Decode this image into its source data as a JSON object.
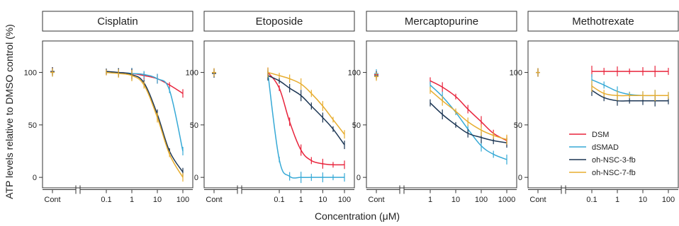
{
  "chart_data": {
    "type": "line",
    "ylabel": "ATP levels relative to DMSO control (%)",
    "xlabel": "Concentration (μM)",
    "x_scale": "log",
    "control_label": "Cont",
    "y_ticks": [
      0,
      50,
      100
    ],
    "ylim": [
      -10,
      130
    ],
    "colors": {
      "DSM": "#e8243c",
      "dSMAD": "#36a9d6",
      "oh-NSC-3-fb": "#1b3553",
      "oh-NSC-7-fb": "#e7ad2f"
    },
    "legend": {
      "placement": "lower-right of Methotrexate panel",
      "entries": [
        "DSM",
        "dSMAD",
        "oh-NSC-3-fb",
        "oh-NSC-7-fb"
      ]
    },
    "panels": [
      {
        "title": "Cisplatin",
        "x_ticks": [
          "0.1",
          "1",
          "10",
          "100"
        ],
        "x_range": [
          0.1,
          100
        ],
        "control": {
          "DSM": 101,
          "dSMAD": 100,
          "oh-NSC-3-fb": 101,
          "oh-NSC-7-fb": 100
        },
        "series": [
          {
            "name": "DSM",
            "x": [
              0.1,
              0.3,
              1,
              3,
              10,
              30,
              100
            ],
            "y": [
              100,
              100,
              99,
              97,
              94,
              88,
              80
            ]
          },
          {
            "name": "dSMAD",
            "x": [
              0.1,
              0.3,
              1,
              3,
              10,
              30,
              100
            ],
            "y": [
              100,
              100,
              99,
              98,
              94,
              83,
              25
            ]
          },
          {
            "name": "oh-NSC-3-fb",
            "x": [
              0.1,
              0.3,
              1,
              3,
              10,
              30,
              100
            ],
            "y": [
              101,
              100,
              98,
              90,
              60,
              25,
              5
            ]
          },
          {
            "name": "oh-NSC-7-fb",
            "x": [
              0.1,
              0.3,
              1,
              3,
              10,
              30,
              100
            ],
            "y": [
              100,
              99,
              97,
              88,
              57,
              22,
              0
            ]
          }
        ]
      },
      {
        "title": "Etoposide",
        "x_ticks": [
          "0.1",
          "1",
          "10",
          "100"
        ],
        "x_range": [
          0.03,
          100
        ],
        "control": {
          "DSM": 100,
          "dSMAD": 100,
          "oh-NSC-3-fb": 99,
          "oh-NSC-7-fb": 100
        },
        "series": [
          {
            "name": "DSM",
            "x": [
              0.03,
              0.1,
              0.3,
              1,
              3,
              10,
              30,
              100
            ],
            "y": [
              100,
              85,
              53,
              26,
              16,
              13,
              12,
              12
            ]
          },
          {
            "name": "dSMAD",
            "x": [
              0.03,
              0.1,
              0.3,
              1,
              3,
              10,
              30,
              100
            ],
            "y": [
              99,
              17,
              1,
              0,
              0,
              0,
              0,
              0
            ]
          },
          {
            "name": "oh-NSC-3-fb",
            "x": [
              0.03,
              0.1,
              0.3,
              1,
              3,
              10,
              30,
              100
            ],
            "y": [
              97,
              92,
              85,
              78,
              68,
              57,
              46,
              31
            ]
          },
          {
            "name": "oh-NSC-7-fb",
            "x": [
              0.03,
              0.1,
              0.3,
              1,
              3,
              10,
              30,
              100
            ],
            "y": [
              100,
              97,
              94,
              89,
              80,
              68,
              55,
              41
            ]
          }
        ]
      },
      {
        "title": "Mercaptopurine",
        "x_ticks": [
          "1",
          "10",
          "100",
          "1000"
        ],
        "x_range": [
          1,
          1000
        ],
        "control": {
          "DSM": 98,
          "dSMAD": 99,
          "oh-NSC-3-fb": 97,
          "oh-NSC-7-fb": 96
        },
        "series": [
          {
            "name": "DSM",
            "x": [
              1,
              3,
              10,
              30,
              100,
              300,
              1000
            ],
            "y": [
              92,
              86,
              77,
              65,
              53,
              42,
              35
            ]
          },
          {
            "name": "dSMAD",
            "x": [
              1,
              3,
              10,
              30,
              100,
              300,
              1000
            ],
            "y": [
              88,
              77,
              62,
              46,
              30,
              22,
              17
            ]
          },
          {
            "name": "oh-NSC-3-fb",
            "x": [
              1,
              3,
              10,
              30,
              100,
              300,
              1000
            ],
            "y": [
              71,
              60,
              50,
              42,
              38,
              35,
              33
            ]
          },
          {
            "name": "oh-NSC-7-fb",
            "x": [
              1,
              3,
              10,
              30,
              100,
              300,
              1000
            ],
            "y": [
              83,
              73,
              63,
              53,
              45,
              40,
              36
            ]
          }
        ]
      },
      {
        "title": "Methotrexate",
        "x_ticks": [
          "0.1",
          "1",
          "10",
          "100"
        ],
        "x_range": [
          0.1,
          100
        ],
        "control": {
          "DSM": 100,
          "dSMAD": 100,
          "oh-NSC-3-fb": 100,
          "oh-NSC-7-fb": 100
        },
        "series": [
          {
            "name": "DSM",
            "x": [
              0.1,
              0.3,
              1,
              3,
              10,
              30,
              100
            ],
            "y": [
              101,
              101,
              101,
              101,
              101,
              101,
              101
            ]
          },
          {
            "name": "dSMAD",
            "x": [
              0.1,
              0.3,
              1,
              3,
              10,
              30,
              100
            ],
            "y": [
              93,
              88,
              82,
              79,
              78,
              78,
              78
            ]
          },
          {
            "name": "oh-NSC-3-fb",
            "x": [
              0.1,
              0.3,
              1,
              3,
              10,
              30,
              100
            ],
            "y": [
              83,
              76,
              73,
              73,
              73,
              73,
              73
            ]
          },
          {
            "name": "oh-NSC-7-fb",
            "x": [
              0.1,
              0.3,
              1,
              3,
              10,
              30,
              100
            ],
            "y": [
              87,
              80,
              78,
              78,
              78,
              78,
              78
            ]
          }
        ]
      }
    ]
  }
}
